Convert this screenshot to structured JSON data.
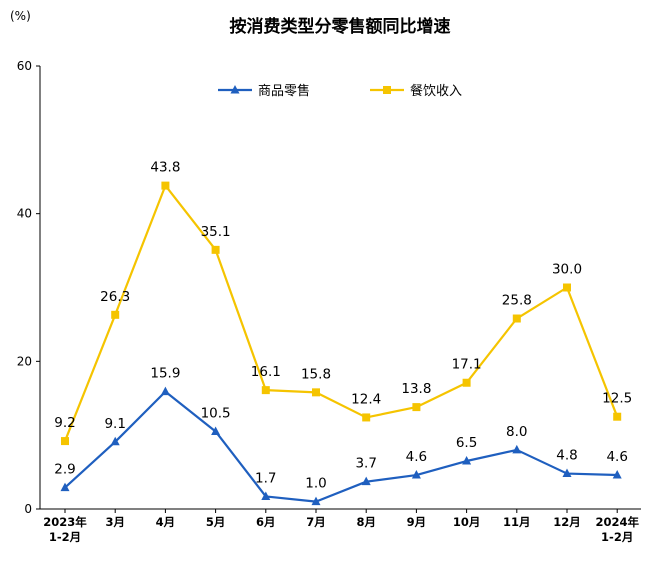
{
  "chart_data": {
    "type": "line",
    "title": "按消费类型分零售额同比增速",
    "unit_label": "(%)",
    "ylim": [
      0,
      60
    ],
    "yticks": [
      0,
      20,
      40,
      60
    ],
    "categories": [
      "2023年|1-2月",
      "3月",
      "4月",
      "5月",
      "6月",
      "7月",
      "8月",
      "9月",
      "10月",
      "11月",
      "12月",
      "2024年|1-2月"
    ],
    "series": [
      {
        "name": "商品零售",
        "color": "#1f5fbf",
        "marker": "triangle",
        "values": [
          2.9,
          9.1,
          15.9,
          10.5,
          1.7,
          1.0,
          3.7,
          4.6,
          6.5,
          8.0,
          4.8,
          4.6
        ],
        "labels": [
          "2.9",
          "9.1",
          "15.9",
          "10.5",
          "1.7",
          "1.0",
          "3.7",
          "4.6",
          "6.5",
          "8.0",
          "4.8",
          "4.6"
        ]
      },
      {
        "name": "餐饮收入",
        "color": "#f5c400",
        "marker": "square",
        "values": [
          9.2,
          26.3,
          43.8,
          35.1,
          16.1,
          15.8,
          12.4,
          13.8,
          17.1,
          25.8,
          30.0,
          12.5
        ],
        "labels": [
          "9.2",
          "26.3",
          "43.8",
          "35.1",
          "16.1",
          "15.8",
          "12.4",
          "13.8",
          "17.1",
          "25.8",
          "30.0",
          "12.5"
        ]
      }
    ],
    "legend_position": "top-center",
    "grid": false
  }
}
